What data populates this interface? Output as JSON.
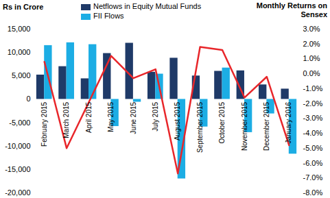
{
  "chart_data": {
    "type": "bar",
    "y_label": "Rs in Crore",
    "y2_label": "Monthly Returns on Sensex",
    "categories": [
      "February 2015",
      "March 2015",
      "April 2015",
      "May 2015",
      "June 2015",
      "July 2015",
      "August 2015",
      "September 2015",
      "October 2015",
      "November 2015",
      "December 2015",
      "January 2016"
    ],
    "series": [
      {
        "name": "Netflows in Equity Mutual Funds",
        "color": "#1F3A68",
        "values": [
          5200,
          7000,
          4400,
          9800,
          12000,
          5800,
          8800,
          5000,
          6000,
          6100,
          3100,
          2200
        ]
      },
      {
        "name": "FII Flows",
        "color": "#1CADE4",
        "values": [
          11500,
          12100,
          11700,
          -5800,
          -600,
          5400,
          -17000,
          -5900,
          6700,
          -7100,
          -3100,
          -11700
        ]
      },
      {
        "type": "line",
        "axis": "y2",
        "color": "#E8262A",
        "values": [
          0.8,
          -5.0,
          -1.9,
          1.2,
          -0.3,
          0.3,
          -6.7,
          1.8,
          1.6,
          -1.6,
          -0.2,
          -4.8
        ]
      }
    ],
    "ylim": [
      -20000,
      15000
    ],
    "yticks": [
      {
        "value": -20000,
        "label": "-20,000"
      },
      {
        "value": -15000,
        "label": "-15,000"
      },
      {
        "value": -10000,
        "label": "-10,000"
      },
      {
        "value": -5000,
        "label": "-5,000"
      },
      0,
      {
        "value": 5000,
        "label": "5,000"
      },
      {
        "value": 10000,
        "label": "10,000"
      },
      {
        "value": 15000,
        "label": "15,000"
      }
    ],
    "y2lim": [
      -8,
      3
    ],
    "y2ticks": [
      {
        "value": -8,
        "label": "-8.0%"
      },
      {
        "value": -7,
        "label": "-7.0%"
      },
      {
        "value": -6,
        "label": "-6.0%"
      },
      {
        "value": -5,
        "label": "-5.0%"
      },
      {
        "value": -4,
        "label": "-4.0%"
      },
      {
        "value": -3,
        "label": "-3.0%"
      },
      {
        "value": -2,
        "label": "-2.0%"
      },
      {
        "value": -1,
        "label": "-1.0%"
      },
      {
        "value": 0,
        "label": "0.0%"
      },
      {
        "value": 1,
        "label": "1.0%"
      },
      {
        "value": 2,
        "label": "2.0%"
      },
      {
        "value": 3,
        "label": "3.0%"
      }
    ],
    "grid": false,
    "legend": "top-left"
  }
}
